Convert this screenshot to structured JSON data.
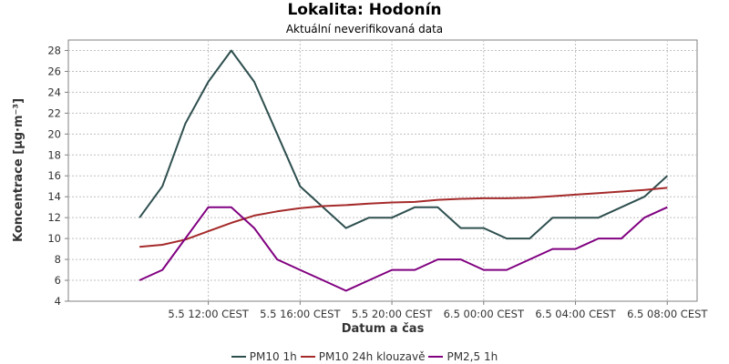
{
  "chart_data": {
    "type": "line",
    "title": "Lokalita: Hodonín",
    "subtitle": "Aktuální neverifikovaná data",
    "xlabel": "Datum a čas",
    "ylabel": "Koncentrace [µg·m⁻³]",
    "ylim": [
      4,
      29
    ],
    "yticks": [
      4,
      6,
      8,
      10,
      12,
      14,
      16,
      18,
      20,
      22,
      24,
      26,
      28
    ],
    "x_hours_range": [
      6.5,
      31
    ],
    "xticks": [
      {
        "hour": 12,
        "label": "5.5 12:00 CEST"
      },
      {
        "hour": 16,
        "label": "5.5 16:00 CEST"
      },
      {
        "hour": 20,
        "label": "5.5 20:00 CEST"
      },
      {
        "hour": 24,
        "label": "6.5 00:00 CEST"
      },
      {
        "hour": 28,
        "label": "6.5 04:00 CEST"
      },
      {
        "hour": 32,
        "label": "6.5 08:00 CEST"
      }
    ],
    "x": [
      9,
      10,
      11,
      12,
      13,
      14,
      15,
      16,
      17,
      18,
      19,
      20,
      21,
      22,
      23,
      24,
      25,
      26,
      27,
      28,
      29,
      30,
      31,
      32
    ],
    "grid": true,
    "legend_position": "bottom",
    "series": [
      {
        "name": "PM10 1h",
        "color": "#2f4f4f",
        "values": [
          12,
          15,
          21,
          25,
          28,
          25,
          20,
          15,
          13,
          11,
          12,
          12,
          13,
          13,
          11,
          11,
          10,
          10,
          12,
          12,
          12,
          13,
          14,
          16
        ]
      },
      {
        "name": "PM10 24h klouzavě",
        "color": "#a52a2a",
        "values": [
          9.2,
          9.4,
          9.9,
          10.7,
          11.5,
          12.2,
          12.6,
          12.9,
          13.1,
          13.2,
          13.35,
          13.45,
          13.5,
          13.7,
          13.8,
          13.85,
          13.85,
          13.9,
          14.05,
          14.2,
          14.35,
          14.5,
          14.65,
          14.85
        ]
      },
      {
        "name": "PM2,5 1h",
        "color": "#800080",
        "values": [
          6,
          7,
          10,
          13,
          13,
          11,
          8,
          7,
          6,
          5,
          6,
          7,
          7,
          8,
          8,
          7,
          7,
          8,
          9,
          9,
          10,
          10,
          12,
          13
        ]
      }
    ]
  }
}
